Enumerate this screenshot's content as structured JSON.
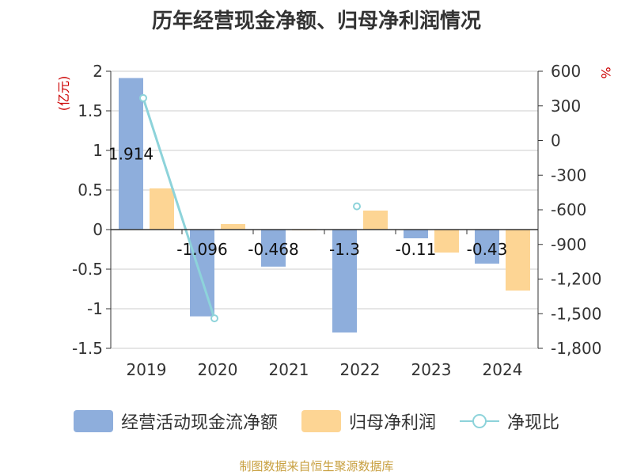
{
  "chart_data": {
    "type": "bar",
    "title": "历年经营现金净额、归母净利润情况",
    "categories": [
      "2019",
      "2020",
      "2021",
      "2022",
      "2023",
      "2024"
    ],
    "left_axis": {
      "label": "(亿元)",
      "ylim": [
        -1.5,
        2
      ],
      "ticks": [
        "2",
        "1.5",
        "1",
        "0.5",
        "0",
        "-0.5",
        "-1",
        "-1.5"
      ]
    },
    "right_axis": {
      "label": "%",
      "ylim": [
        -1800,
        600
      ],
      "ticks": [
        "600",
        "300",
        "0",
        "-300",
        "-600",
        "-900",
        "-1,200",
        "-1,500",
        "-1,800"
      ]
    },
    "series": [
      {
        "name": "经营活动现金流净额",
        "type": "bar",
        "axis": "left",
        "color": "#8eaedc",
        "values": [
          1.914,
          -1.096,
          -0.468,
          -1.3,
          -0.11,
          -0.43
        ],
        "labels": [
          "1.914",
          "-1.096",
          "-0.468",
          "-1.3",
          "-0.11",
          "-0.43"
        ]
      },
      {
        "name": "归母净利润",
        "type": "bar",
        "axis": "left",
        "color": "#fdd594",
        "values": [
          0.52,
          0.07,
          0.0,
          0.24,
          -0.29,
          -0.77
        ]
      },
      {
        "name": "净现比",
        "type": "line",
        "axis": "right",
        "color": "#8dd3da",
        "values": [
          368,
          -1540,
          null,
          -570,
          null,
          null
        ]
      }
    ],
    "grid": true,
    "legend_position": "bottom"
  },
  "source": "制图数据来自恒生聚源数据库"
}
